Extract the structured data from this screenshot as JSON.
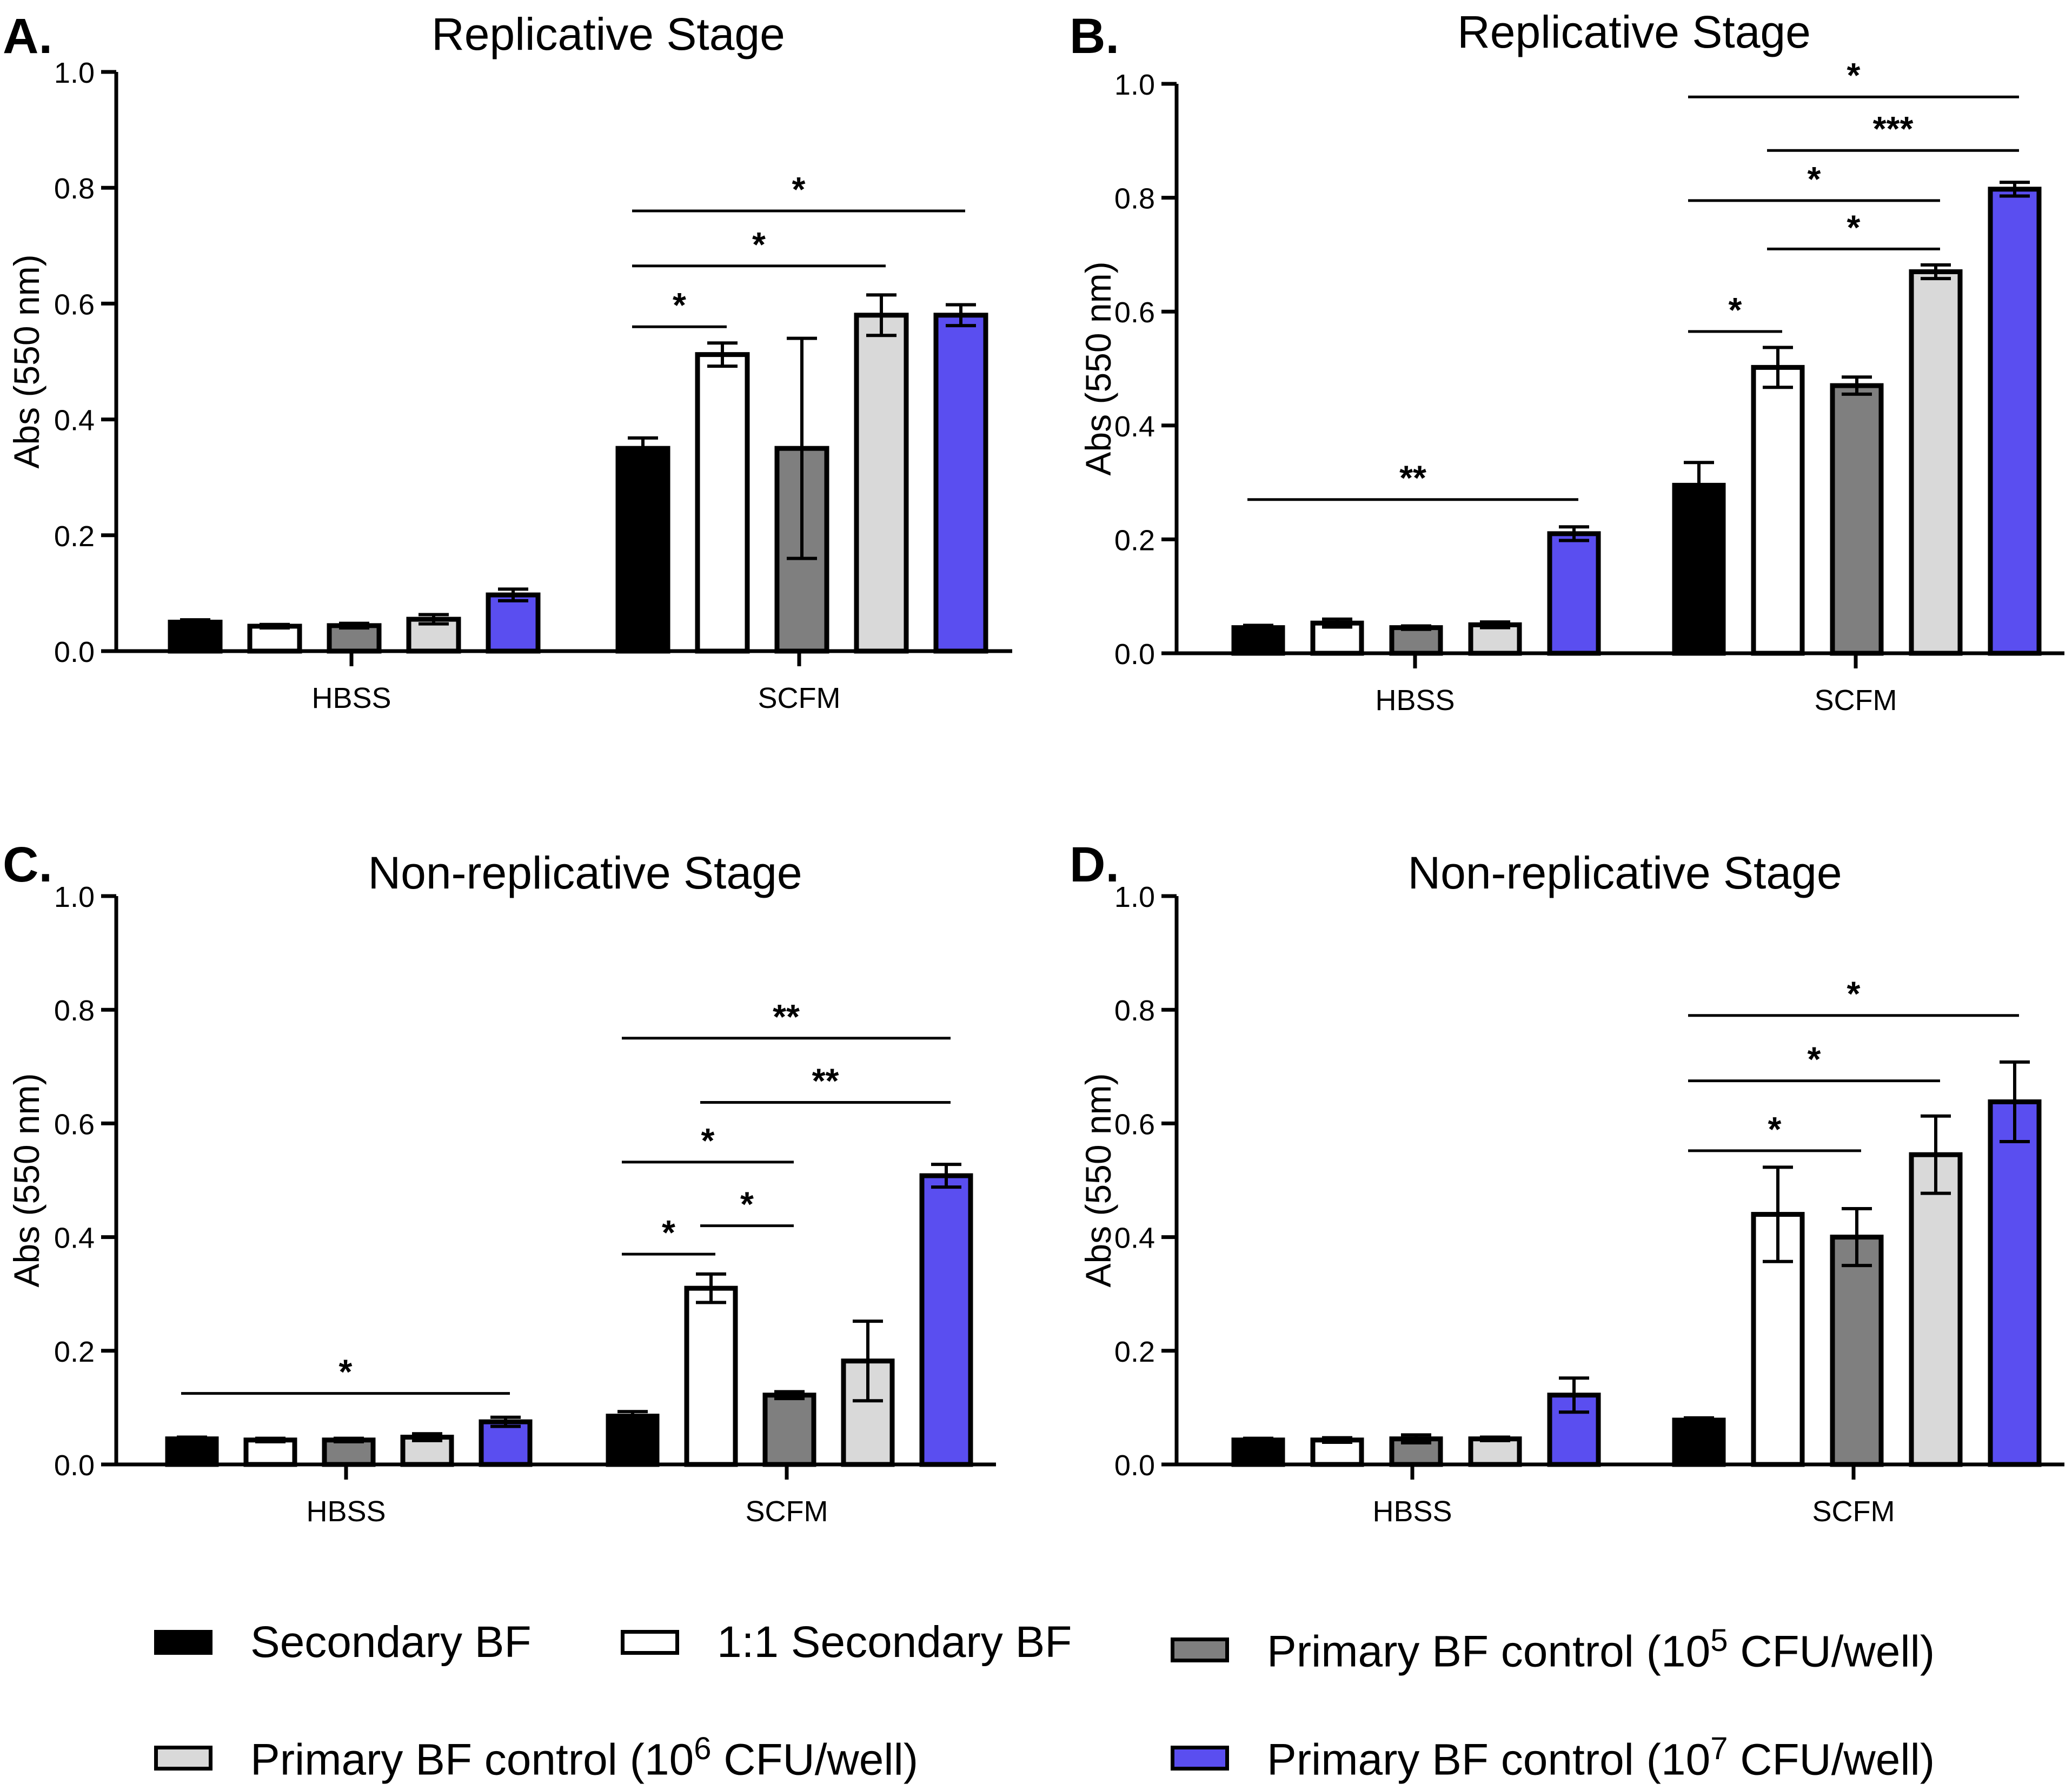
{
  "chart_data": [
    {
      "panel_label": "A.",
      "title": "Replicative Stage",
      "type": "bar",
      "ylabel": "Abs (550 nm)",
      "ylim": [
        0,
        1.0
      ],
      "yticks": [
        "0.0",
        "0.2",
        "0.4",
        "0.6",
        "0.8",
        "1.0"
      ],
      "categories": [
        "HBSS",
        "SCFM"
      ],
      "series": [
        {
          "name": "Secondary BF",
          "values": [
            0.05,
            0.35
          ],
          "errors": [
            0.004,
            0.018
          ]
        },
        {
          "name": "1:1 Secondary BF",
          "values": [
            0.043,
            0.512
          ],
          "errors": [
            0.003,
            0.02
          ]
        },
        {
          "name": "Primary BF control (10^5 CFU/well)",
          "values": [
            0.044,
            0.35
          ],
          "errors": [
            0.004,
            0.19
          ]
        },
        {
          "name": "Primary BF control (10^6 CFU/well)",
          "values": [
            0.055,
            0.58
          ],
          "errors": [
            0.008,
            0.035
          ]
        },
        {
          "name": "Primary BF control (10^7 CFU/well)",
          "values": [
            0.097,
            0.58
          ],
          "errors": [
            0.01,
            0.018
          ]
        }
      ],
      "significance": [
        {
          "group": 1,
          "from": 0,
          "to": 1,
          "y": 0.56,
          "label": "*"
        },
        {
          "group": 1,
          "from": 0,
          "to": 3,
          "y": 0.665,
          "label": "*"
        },
        {
          "group": 1,
          "from": 0,
          "to": 4,
          "y": 0.76,
          "label": "*"
        }
      ]
    },
    {
      "panel_label": "B.",
      "title": "Replicative Stage",
      "type": "bar",
      "ylabel": "Abs (550 nm)",
      "ylim": [
        0,
        1.0
      ],
      "yticks": [
        "0.0",
        "0.2",
        "0.4",
        "0.6",
        "0.8",
        "1.0"
      ],
      "categories": [
        "HBSS",
        "SCFM"
      ],
      "series": [
        {
          "name": "Secondary BF",
          "values": [
            0.045,
            0.295
          ],
          "errors": [
            0.004,
            0.04
          ]
        },
        {
          "name": "1:1 Secondary BF",
          "values": [
            0.053,
            0.502
          ],
          "errors": [
            0.007,
            0.035
          ]
        },
        {
          "name": "Primary BF control (10^5 CFU/well)",
          "values": [
            0.045,
            0.47
          ],
          "errors": [
            0.003,
            0.015
          ]
        },
        {
          "name": "Primary BF control (10^6 CFU/well)",
          "values": [
            0.05,
            0.67
          ],
          "errors": [
            0.005,
            0.012
          ]
        },
        {
          "name": "Primary BF control (10^7 CFU/well)",
          "values": [
            0.21,
            0.815
          ],
          "errors": [
            0.012,
            0.012
          ]
        }
      ],
      "significance": [
        {
          "group": 0,
          "from": 0,
          "to": 4,
          "y": 0.27,
          "label": "**"
        },
        {
          "group": 1,
          "from": 0,
          "to": 1,
          "y": 0.565,
          "label": "*"
        },
        {
          "group": 1,
          "from": 1,
          "to": 3,
          "y": 0.71,
          "label": "*"
        },
        {
          "group": 1,
          "from": 0,
          "to": 3,
          "y": 0.795,
          "label": "*"
        },
        {
          "group": 1,
          "from": 1,
          "to": 4,
          "y": 0.883,
          "label": "***"
        },
        {
          "group": 1,
          "from": 0,
          "to": 4,
          "y": 0.977,
          "label": "*"
        }
      ]
    },
    {
      "panel_label": "C.",
      "title": "Non-replicative Stage",
      "type": "bar",
      "ylabel": "Abs (550 nm)",
      "ylim": [
        0,
        1.0
      ],
      "yticks": [
        "0.0",
        "0.2",
        "0.4",
        "0.6",
        "0.8",
        "1.0"
      ],
      "categories": [
        "HBSS",
        "SCFM"
      ],
      "series": [
        {
          "name": "Secondary BF",
          "values": [
            0.045,
            0.085
          ],
          "errors": [
            0.003,
            0.008
          ]
        },
        {
          "name": "1:1 Secondary BF",
          "values": [
            0.043,
            0.31
          ],
          "errors": [
            0.003,
            0.025
          ]
        },
        {
          "name": "Primary BF control (10^5 CFU/well)",
          "values": [
            0.043,
            0.122
          ],
          "errors": [
            0.003,
            0.006
          ]
        },
        {
          "name": "Primary BF control (10^6 CFU/well)",
          "values": [
            0.048,
            0.182
          ],
          "errors": [
            0.006,
            0.07
          ]
        },
        {
          "name": "Primary BF control (10^7 CFU/well)",
          "values": [
            0.075,
            0.508
          ],
          "errors": [
            0.008,
            0.02
          ]
        }
      ],
      "significance": [
        {
          "group": 0,
          "from": 0,
          "to": 4,
          "y": 0.125,
          "label": "*"
        },
        {
          "group": 1,
          "from": 0,
          "to": 1,
          "y": 0.37,
          "label": "*"
        },
        {
          "group": 1,
          "from": 1,
          "to": 2,
          "y": 0.42,
          "label": "*"
        },
        {
          "group": 1,
          "from": 0,
          "to": 2,
          "y": 0.532,
          "label": "*"
        },
        {
          "group": 1,
          "from": 1,
          "to": 4,
          "y": 0.637,
          "label": "**"
        },
        {
          "group": 1,
          "from": 0,
          "to": 4,
          "y": 0.75,
          "label": "**"
        }
      ]
    },
    {
      "panel_label": "D.",
      "title": "Non-replicative Stage",
      "type": "bar",
      "ylabel": "Abs (550 nm)",
      "ylim": [
        0,
        1.0
      ],
      "yticks": [
        "0.0",
        "0.2",
        "0.4",
        "0.6",
        "0.8",
        "1.0"
      ],
      "categories": [
        "HBSS",
        "SCFM"
      ],
      "series": [
        {
          "name": "Secondary BF",
          "values": [
            0.043,
            0.078
          ],
          "errors": [
            0.003,
            0.004
          ]
        },
        {
          "name": "1:1 Secondary BF",
          "values": [
            0.043,
            0.44
          ],
          "errors": [
            0.004,
            0.083
          ]
        },
        {
          "name": "Primary BF control (10^5 CFU/well)",
          "values": [
            0.045,
            0.4
          ],
          "errors": [
            0.007,
            0.05
          ]
        },
        {
          "name": "Primary BF control (10^6 CFU/well)",
          "values": [
            0.045,
            0.545
          ],
          "errors": [
            0.003,
            0.068
          ]
        },
        {
          "name": "Primary BF control (10^7 CFU/well)",
          "values": [
            0.122,
            0.638
          ],
          "errors": [
            0.03,
            0.07
          ]
        }
      ],
      "significance": [
        {
          "group": 1,
          "from": 0,
          "to": 2,
          "y": 0.552,
          "label": "*"
        },
        {
          "group": 1,
          "from": 0,
          "to": 3,
          "y": 0.675,
          "label": "*"
        },
        {
          "group": 1,
          "from": 0,
          "to": 4,
          "y": 0.79,
          "label": "*"
        }
      ]
    }
  ],
  "legend": [
    {
      "name": "Secondary BF",
      "color": "#000000",
      "label": "Secondary BF",
      "base": "",
      "exp": "",
      "suffix": ""
    },
    {
      "name": "1:1 Secondary BF",
      "color": "#ffffff",
      "label": "1:1 Secondary BF",
      "base": "",
      "exp": "",
      "suffix": ""
    },
    {
      "name": "Primary BF control (10^5 CFU/well)",
      "color": "#7f7f7f",
      "label": "Primary BF control (10",
      "base": "",
      "exp": "5",
      "suffix": " CFU/well)"
    },
    {
      "name": "Primary BF control (10^6 CFU/well)",
      "color": "#d9d9d9",
      "label": "Primary BF control (10",
      "base": "",
      "exp": "6",
      "suffix": " CFU/well)"
    },
    {
      "name": "Primary BF control (10^7 CFU/well)",
      "color": "#5a4ef0",
      "label": "Primary BF control (10",
      "base": "",
      "exp": "7",
      "suffix": " CFU/well)"
    }
  ]
}
